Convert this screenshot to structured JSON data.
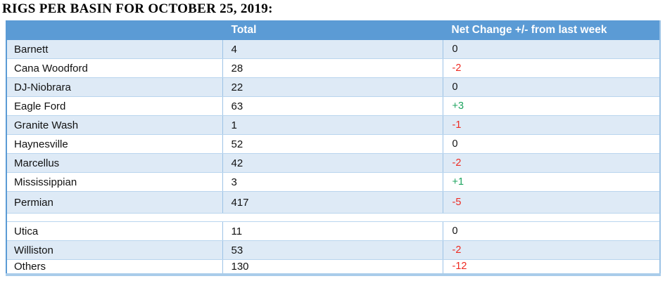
{
  "title": "RIGS PER BASIN FOR OCTOBER 25, 2019:",
  "table": {
    "columns": {
      "basin": "",
      "total": "Total",
      "change": "Net Change +/- from last week"
    },
    "rows": [
      {
        "basin": "Barnett",
        "total": "4",
        "change": "0",
        "trend": "zero"
      },
      {
        "basin": "Cana Woodford",
        "total": "28",
        "change": "-2",
        "trend": "negative"
      },
      {
        "basin": "DJ-Niobrara",
        "total": "22",
        "change": "0",
        "trend": "zero"
      },
      {
        "basin": "Eagle Ford",
        "total": "63",
        "change": "+3",
        "trend": "positive"
      },
      {
        "basin": "Granite Wash",
        "total": "1",
        "change": "-1",
        "trend": "negative"
      },
      {
        "basin": "Haynesville",
        "total": "52",
        "change": "0",
        "trend": "zero"
      },
      {
        "basin": "Marcellus",
        "total": "42",
        "change": "-2",
        "trend": "negative"
      },
      {
        "basin": "Mississippian",
        "total": "3",
        "change": "+1",
        "trend": "positive"
      },
      {
        "basin": "Permian",
        "total": "417",
        "change": "-5",
        "trend": "negative"
      },
      {
        "basin": "Utica",
        "total": "11",
        "change": "0",
        "trend": "zero"
      },
      {
        "basin": "Williston",
        "total": "53",
        "change": "-2",
        "trend": "negative"
      },
      {
        "basin": "Others",
        "total": "130",
        "change": "-12",
        "trend": "negative"
      }
    ],
    "colors": {
      "header_bg": "#5b9bd5",
      "band_bg": "#deeaf6",
      "border": "#9cc3e6",
      "positive": "#1ea45f",
      "negative": "#ee2a21",
      "neutral": "#111111"
    }
  }
}
